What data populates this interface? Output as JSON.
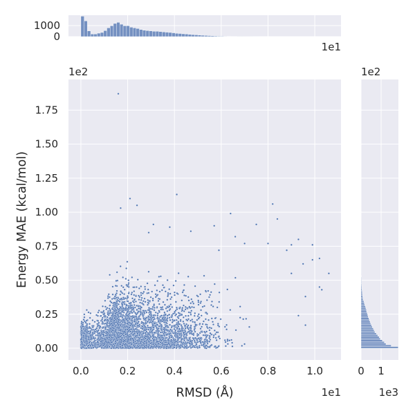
{
  "chart_data": [
    {
      "id": "main",
      "type": "scatter",
      "xlabel": "RMSD (Å)",
      "ylabel": "Energy MAE (kcal/mol)",
      "x_offset_text": "1e1",
      "y_offset_text": "1e2",
      "xlim": [
        -0.053,
        1.112
      ],
      "ylim": [
        -0.086,
        1.975
      ],
      "xticks": [
        0.0,
        0.2,
        0.4,
        0.6,
        0.8,
        1.0
      ],
      "xtick_labels": [
        "0.0",
        "0.2",
        "0.4",
        "0.6",
        "0.8",
        "1.0"
      ],
      "yticks": [
        0.0,
        0.25,
        0.5,
        0.75,
        1.0,
        1.25,
        1.5,
        1.75
      ],
      "ytick_labels": [
        "0.00",
        "0.25",
        "0.50",
        "0.75",
        "1.00",
        "1.25",
        "1.50",
        "1.75"
      ],
      "grid": true,
      "color": "#4c72b0",
      "background": "#eaeaf2",
      "sample_points": 5000,
      "outliers": [
        [
          0.16,
          1.87
        ],
        [
          0.41,
          1.13
        ],
        [
          0.21,
          1.1
        ],
        [
          0.82,
          1.06
        ],
        [
          0.24,
          1.05
        ],
        [
          0.17,
          1.03
        ],
        [
          0.84,
          0.95
        ],
        [
          0.64,
          0.99
        ],
        [
          0.57,
          0.9
        ],
        [
          0.75,
          0.91
        ],
        [
          0.93,
          0.8
        ],
        [
          0.9,
          0.76
        ],
        [
          0.99,
          0.76
        ],
        [
          1.06,
          0.55
        ],
        [
          1.02,
          0.45
        ],
        [
          1.03,
          0.43
        ],
        [
          0.99,
          0.65
        ],
        [
          0.95,
          0.62
        ],
        [
          0.9,
          0.55
        ],
        [
          0.8,
          0.77
        ],
        [
          0.88,
          0.72
        ],
        [
          1.02,
          0.66
        ],
        [
          0.96,
          0.38
        ],
        [
          0.93,
          0.24
        ],
        [
          0.96,
          0.17
        ],
        [
          0.7,
          0.77
        ],
        [
          0.66,
          0.82
        ],
        [
          0.59,
          0.72
        ],
        [
          0.47,
          0.86
        ],
        [
          0.38,
          0.89
        ],
        [
          0.31,
          0.91
        ],
        [
          0.29,
          0.85
        ]
      ]
    },
    {
      "id": "top-marginal",
      "type": "bar",
      "orientation": "vertical",
      "x_offset_text": "1e1",
      "bin_start": 0.0,
      "bin_width": 0.0139,
      "ylim": [
        0,
        1940
      ],
      "yticks": [
        0,
        1000
      ],
      "ytick_labels": [
        "0",
        "1000"
      ],
      "values": [
        1850,
        1420,
        520,
        230,
        230,
        310,
        375,
        540,
        790,
        980,
        1190,
        1290,
        1120,
        980,
        980,
        850,
        790,
        730,
        640,
        580,
        540,
        520,
        480,
        480,
        450,
        420,
        400,
        375,
        340,
        300,
        280,
        250,
        230,
        200,
        180,
        160,
        140,
        120,
        100,
        90,
        75,
        60,
        50,
        40,
        30,
        25,
        20,
        15,
        12,
        10,
        5,
        4,
        3,
        2,
        2
      ]
    },
    {
      "id": "right-marginal",
      "type": "bar",
      "orientation": "horizontal",
      "y_offset_text": "1e2",
      "x_offset_text": "1e3",
      "bin_start": 0.0,
      "bin_width": 0.0125,
      "xlim": [
        0,
        1860
      ],
      "xticks": [
        0,
        1
      ],
      "xtick_labels": [
        "0",
        "1"
      ],
      "values": [
        1850,
        1500,
        1240,
        1160,
        1060,
        960,
        900,
        830,
        760,
        690,
        650,
        610,
        560,
        520,
        480,
        450,
        415,
        390,
        355,
        330,
        310,
        275,
        265,
        240,
        220,
        185,
        160,
        140,
        100,
        90,
        80,
        70,
        60,
        55,
        45,
        40,
        35,
        30,
        25,
        20,
        18,
        15,
        12,
        10,
        8,
        6,
        5,
        4,
        3,
        3,
        2,
        2,
        1,
        1,
        1,
        1
      ]
    }
  ]
}
